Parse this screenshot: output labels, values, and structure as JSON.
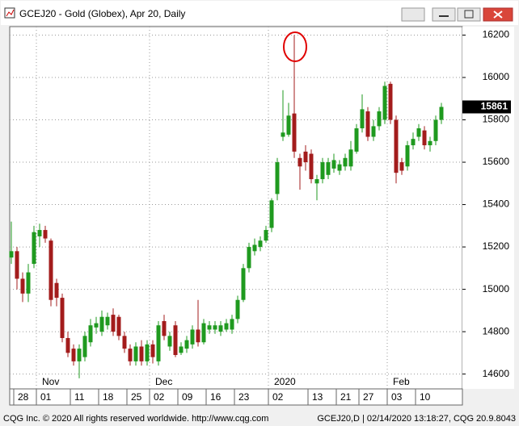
{
  "chart_data": {
    "type": "candlestick",
    "title": "GCEJ20 - Gold (Globex), Apr 20, Daily",
    "categories": [
      null,
      "28",
      null,
      null,
      null,
      "01",
      null,
      null,
      null,
      null,
      null,
      "11",
      null,
      null,
      null,
      null,
      "18",
      null,
      null,
      null,
      null,
      "25",
      null,
      null,
      null,
      "02",
      null,
      null,
      null,
      null,
      "09",
      null,
      null,
      null,
      null,
      "16",
      null,
      null,
      null,
      null,
      "23",
      null,
      null,
      null,
      null,
      null,
      "02",
      null,
      null,
      null,
      null,
      null,
      null,
      "13",
      null,
      null,
      null,
      null,
      "21",
      null,
      null,
      null,
      "27",
      null,
      null,
      null,
      null,
      "03",
      null,
      null,
      null,
      null,
      "10",
      null,
      null,
      null,
      null
    ],
    "months": [
      null,
      null,
      null,
      null,
      null,
      "Nov",
      null,
      null,
      null,
      null,
      null,
      null,
      null,
      null,
      null,
      null,
      null,
      null,
      null,
      null,
      null,
      null,
      null,
      null,
      null,
      "Dec",
      null,
      null,
      null,
      null,
      null,
      null,
      null,
      null,
      null,
      null,
      null,
      null,
      null,
      null,
      null,
      null,
      null,
      null,
      null,
      null,
      "2020",
      null,
      null,
      null,
      null,
      null,
      null,
      null,
      null,
      null,
      null,
      null,
      null,
      null,
      null,
      null,
      null,
      null,
      null,
      null,
      null,
      "Feb",
      null,
      null,
      null,
      null,
      null,
      null,
      null,
      null,
      null
    ],
    "open": [
      15150,
      15180,
      15050,
      14980,
      15120,
      15250,
      15280,
      15230,
      15030,
      14960,
      14770,
      14720,
      14660,
      14680,
      14750,
      14820,
      14800,
      14830,
      14880,
      14870,
      14780,
      14720,
      14660,
      14730,
      14660,
      14740,
      14660,
      14850,
      14730,
      14830,
      14700,
      14720,
      14740,
      14810,
      14750,
      14810,
      14810,
      14800,
      14810,
      14810,
      14860,
      14950,
      15100,
      15180,
      15200,
      15230,
      15290,
      15450,
      15720,
      15730,
      15830,
      15620,
      15650,
      15640,
      15500,
      15520,
      15540,
      15570,
      15560,
      15580,
      15580,
      15650,
      15760,
      15840,
      15720,
      15770,
      15800,
      15970,
      15800,
      15600,
      15580,
      15680,
      15720,
      15750,
      15680,
      15700,
      15800
    ],
    "high": [
      15320,
      15200,
      15080,
      15120,
      15300,
      15310,
      15300,
      15240,
      15050,
      14980,
      14800,
      14740,
      14740,
      14800,
      14860,
      14870,
      14900,
      14890,
      14910,
      14880,
      14800,
      14740,
      14750,
      14760,
      14760,
      14760,
      14850,
      14880,
      14800,
      14850,
      14750,
      14780,
      14830,
      14950,
      14860,
      14850,
      14850,
      14850,
      14860,
      14880,
      14970,
      15120,
      15220,
      15240,
      15250,
      15300,
      15430,
      15620,
      15940,
      15880,
      16200,
      15640,
      15680,
      15660,
      15540,
      15620,
      15620,
      15640,
      15610,
      15640,
      15700,
      15780,
      15920,
      15860,
      15800,
      15860,
      15980,
      15980,
      15820,
      15620,
      15700,
      15740,
      15780,
      15770,
      15720,
      15820,
      15880
    ],
    "low": [
      15120,
      15000,
      14940,
      14940,
      15100,
      15200,
      15220,
      14920,
      14920,
      14750,
      14680,
      14640,
      14580,
      14660,
      14730,
      14790,
      14780,
      14810,
      14780,
      14760,
      14700,
      14640,
      14640,
      14640,
      14640,
      14650,
      14640,
      14760,
      14710,
      14680,
      14690,
      14700,
      14720,
      14730,
      14740,
      14790,
      14790,
      14780,
      14800,
      14790,
      14840,
      14940,
      15080,
      15160,
      15180,
      15220,
      15270,
      15420,
      15700,
      15720,
      15620,
      15470,
      15560,
      15500,
      15420,
      15500,
      15520,
      15550,
      15540,
      15560,
      15560,
      15640,
      15740,
      15700,
      15700,
      15750,
      15780,
      15780,
      15500,
      15540,
      15560,
      15660,
      15700,
      15660,
      15650,
      15680,
      15780
    ],
    "close": [
      15180,
      15050,
      14980,
      15080,
      15270,
      15280,
      15240,
      14950,
      14960,
      14770,
      14700,
      14660,
      14720,
      14780,
      14830,
      14840,
      14870,
      14870,
      14800,
      14780,
      14720,
      14660,
      14730,
      14660,
      14740,
      14680,
      14830,
      14780,
      14780,
      14690,
      14730,
      14760,
      14810,
      14750,
      14840,
      14830,
      14830,
      14830,
      14840,
      14860,
      14950,
      15100,
      15200,
      15210,
      15230,
      15280,
      15420,
      15600,
      15740,
      15820,
      15650,
      15580,
      15600,
      15520,
      15520,
      15600,
      15600,
      15610,
      15590,
      15620,
      15660,
      15760,
      15850,
      15720,
      15770,
      15840,
      15960,
      15800,
      15550,
      15560,
      15680,
      15710,
      15760,
      15680,
      15700,
      15800,
      15861
    ],
    "up_color": "#1f9a1f",
    "down_color": "#a31c1c",
    "ylim": [
      14530,
      16240
    ],
    "yticks": [
      14600,
      14800,
      15000,
      15200,
      15400,
      15600,
      15800,
      16000,
      16200
    ],
    "grid": true
  },
  "footer_left": "CQG Inc. © 2020 All rights reserved worldwide. http://www.cqg.com",
  "footer_right": "GCEJ20,D | 02/14/2020 13:18:27, CQG 20.9.8043"
}
